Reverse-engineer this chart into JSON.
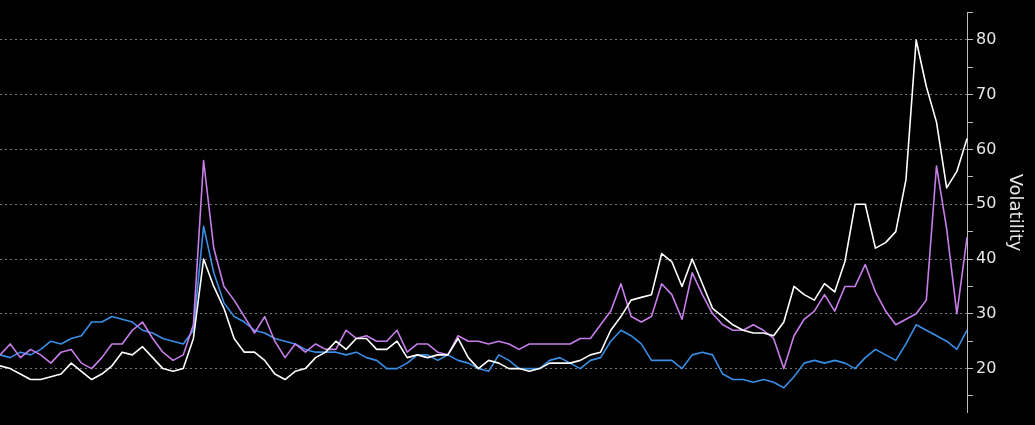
{
  "chart_data": {
    "type": "line",
    "ylabel": "Volatility",
    "categories": [
      null,
      null,
      null,
      null,
      null,
      null,
      null,
      null,
      null,
      null,
      null,
      null,
      null,
      null,
      null,
      null,
      null,
      null,
      null,
      null,
      null,
      null,
      null,
      null,
      null,
      null,
      null,
      null,
      null,
      null,
      null,
      null,
      null,
      null,
      null,
      null,
      null,
      null,
      null,
      null,
      null,
      null,
      null,
      null,
      null,
      null,
      null,
      null,
      null,
      null,
      null,
      null,
      null,
      null,
      null,
      null,
      null,
      null,
      null,
      null,
      null,
      null,
      null,
      null,
      null,
      null,
      null,
      null,
      null,
      null,
      null,
      null,
      null,
      null,
      null,
      null,
      null,
      null,
      null,
      null,
      null,
      null,
      null,
      null,
      null,
      null,
      null,
      null,
      null,
      null,
      null,
      null,
      null,
      null,
      null,
      null
    ],
    "series": [
      {
        "color": "#ffffff",
        "values": [
          20.5,
          20,
          19,
          18,
          18,
          18.5,
          19,
          21,
          19.5,
          18,
          19,
          20.5,
          23,
          22.5,
          24,
          22,
          20,
          19.5,
          20,
          25.5,
          40,
          35,
          31,
          25.5,
          23,
          23,
          21.5,
          19,
          18,
          19.5,
          20,
          22,
          23,
          25,
          23.5,
          25.5,
          25.5,
          23.5,
          23.5,
          25,
          22,
          22.5,
          22,
          22.5,
          22.5,
          25.5,
          22,
          20,
          21.5,
          21,
          20,
          20,
          19.5,
          20,
          21,
          21,
          21,
          21.5,
          22.5,
          23,
          27,
          29.5,
          32.5,
          33,
          33.5,
          41,
          39.5,
          35,
          40,
          35.5,
          31,
          29.5,
          28,
          27,
          26.5,
          26.5,
          26,
          28.5,
          35,
          33.5,
          32.5,
          35.5,
          34,
          39.5,
          50,
          50,
          42,
          43,
          45,
          54.5,
          80,
          71.5,
          65,
          53,
          56,
          62
        ]
      },
      {
        "color": "#c77dea",
        "values": [
          22.5,
          24.5,
          22,
          23.5,
          22.5,
          21,
          23,
          23.5,
          21,
          20,
          22,
          24.5,
          24.5,
          27,
          28.5,
          25.5,
          23,
          21.5,
          22.5,
          28,
          58,
          42,
          35,
          32.5,
          29.5,
          26.5,
          29.5,
          25,
          22,
          24.5,
          23,
          24.5,
          23.5,
          23.5,
          27,
          25.5,
          26,
          25,
          25,
          27,
          23,
          24.5,
          24.5,
          23,
          22.5,
          26,
          25,
          25,
          24.5,
          25,
          24.5,
          23.5,
          24.5,
          24.5,
          24.5,
          24.5,
          24.5,
          25.5,
          25.5,
          28,
          30.5,
          35.5,
          29.5,
          28.5,
          29.5,
          35.5,
          33.5,
          29,
          37.5,
          33.5,
          30,
          28,
          27,
          27,
          28,
          27,
          25.5,
          20,
          26,
          29,
          30.5,
          33.5,
          30.5,
          35,
          35,
          39,
          34,
          30.5,
          28,
          29,
          30,
          32.5,
          57,
          45.5,
          30,
          44
        ]
      },
      {
        "color": "#3a8ee6",
        "values": [
          22.5,
          22,
          23,
          22.5,
          23.5,
          25,
          24.5,
          25.5,
          26,
          28.5,
          28.5,
          29.5,
          29,
          28.5,
          27,
          26.5,
          25.5,
          25,
          24.5,
          27,
          46,
          37.5,
          32,
          29.5,
          28.5,
          27,
          26.5,
          25.5,
          25,
          24.5,
          23.5,
          23,
          23,
          23,
          22.5,
          23,
          22,
          21.5,
          20,
          20,
          21,
          22.5,
          22.5,
          21.5,
          22.5,
          21.5,
          21,
          20,
          19.5,
          22.5,
          21.5,
          20,
          20,
          20,
          21.5,
          22,
          21,
          20,
          21.5,
          22,
          25,
          27,
          26,
          24.5,
          21.5,
          21.5,
          21.5,
          20,
          22.5,
          23,
          22.5,
          19,
          18,
          18,
          17.5,
          18,
          17.5,
          16.5,
          18.5,
          21,
          21.5,
          21,
          21.5,
          21,
          20,
          22,
          23.5,
          22.5,
          21.5,
          24.5,
          28,
          27,
          26,
          25,
          23.5,
          27
        ]
      }
    ],
    "ylim": [
      12,
      85
    ],
    "yticks": [
      {
        "value": 15,
        "label": null
      },
      20,
      {
        "value": 25,
        "label": null
      },
      30,
      {
        "value": 35,
        "label": null
      },
      40,
      {
        "value": 45,
        "label": null
      },
      50,
      {
        "value": 55,
        "label": null
      },
      60,
      {
        "value": 65,
        "label": null
      },
      70,
      {
        "value": 75,
        "label": null
      },
      80,
      {
        "value": 85,
        "label": null
      }
    ],
    "tick_labels": "y",
    "grid": "y",
    "legend": false,
    "marker": "none",
    "line_style": "solid"
  }
}
